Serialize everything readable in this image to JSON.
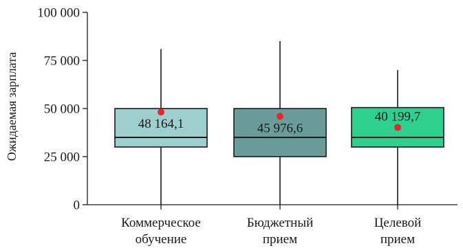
{
  "chart_data": {
    "type": "box",
    "ylabel": "Ожидаемая зарплата",
    "xlabel": "",
    "ylim": [
      0,
      100000
    ],
    "yticks": [
      0,
      25000,
      50000,
      75000,
      100000
    ],
    "ytick_labels": [
      "0",
      "25 000",
      "50 000",
      "75 000",
      "100 000"
    ],
    "grid": false,
    "series": [
      {
        "label_lines": [
          "Коммерческое",
          "обучение"
        ],
        "color": "#9dcfcf",
        "whisker_low": 0,
        "q1": 30000,
        "median": 35000,
        "q3": 50000,
        "whisker_high": 81000,
        "mean": 48164.1,
        "mean_label": "48 164,1"
      },
      {
        "label_lines": [
          "Бюджетный",
          "прием"
        ],
        "color": "#6a9c99",
        "whisker_low": 0,
        "q1": 25000,
        "median": 35000,
        "q3": 50000,
        "whisker_high": 85000,
        "mean": 45976.6,
        "mean_label": "45 976,6"
      },
      {
        "label_lines": [
          "Целевой",
          "прием"
        ],
        "color": "#2fcf8f",
        "whisker_low": 0,
        "q1": 30000,
        "median": 35000,
        "q3": 50500,
        "whisker_high": 70000,
        "mean": 40199.7,
        "mean_label": "40 199,7"
      }
    ]
  }
}
